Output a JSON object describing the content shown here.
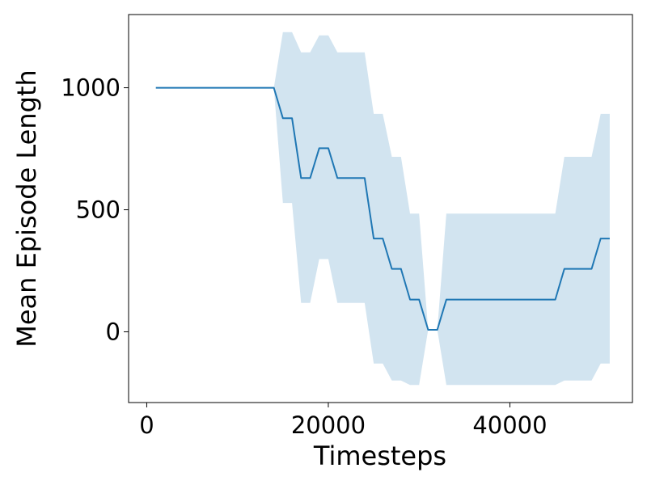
{
  "chart_data": {
    "type": "line",
    "title": "",
    "xlabel": "Timesteps",
    "ylabel": "Mean Episode Length",
    "xlim": [
      -2000,
      53500
    ],
    "ylim": [
      -290,
      1300
    ],
    "xticks": [
      0,
      20000,
      40000
    ],
    "xtick_labels": [
      "0",
      "20000",
      "40000"
    ],
    "yticks": [
      0,
      500,
      1000
    ],
    "ytick_labels": [
      "0",
      "500",
      "1000"
    ],
    "grid": false,
    "legend": "none",
    "colors": {
      "line": "#1f77b4",
      "band": "#1f77b4",
      "band_opacity": 0.2
    },
    "series": [
      {
        "x": [
          1000,
          14000,
          15000,
          16000,
          17000,
          18000,
          19000,
          20000,
          21000,
          22000,
          24000,
          25000,
          26000,
          27000,
          28000,
          29000,
          30000,
          31000,
          32000,
          33000,
          45000,
          46000,
          47000,
          48000,
          49000,
          50000,
          51000
        ],
        "y": [
          1000,
          1000,
          875,
          875,
          630,
          630,
          752,
          752,
          630,
          630,
          630,
          382,
          382,
          258,
          258,
          132,
          132,
          8,
          8,
          132,
          132,
          258,
          258,
          258,
          258,
          382,
          382
        ],
        "y_upper": [
          1000,
          1000,
          1228,
          1228,
          1145,
          1145,
          1215,
          1215,
          1145,
          1145,
          1145,
          893,
          893,
          717,
          717,
          484,
          484,
          8,
          8,
          484,
          484,
          717,
          717,
          717,
          717,
          893,
          893
        ],
        "y_lower": [
          1000,
          1000,
          528,
          528,
          118,
          118,
          298,
          298,
          118,
          118,
          118,
          -130,
          -130,
          -200,
          -200,
          -218,
          -218,
          8,
          8,
          -218,
          -218,
          -200,
          -200,
          -200,
          -200,
          -130,
          -130
        ]
      }
    ]
  }
}
